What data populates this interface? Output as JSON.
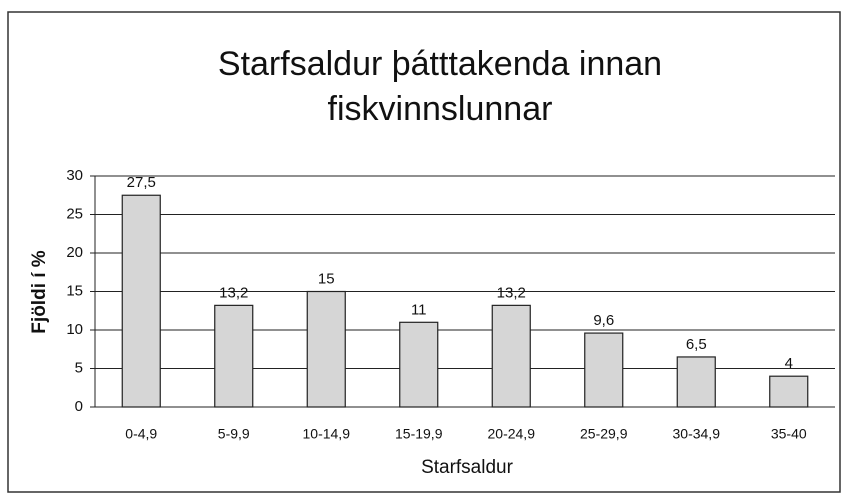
{
  "chart_data": {
    "type": "bar",
    "title": [
      "Starfsaldur þátttakenda innan",
      "fiskvinnslunnar"
    ],
    "x_label": "Starfsaldur",
    "y_label": "Fjöldi í %",
    "categories": [
      "0-4,9",
      "5-9,9",
      "10-14,9",
      "15-19,9",
      "20-24,9",
      "25-29,9",
      "30-34,9",
      "35-40"
    ],
    "values": [
      27.5,
      13.2,
      15,
      11,
      13.2,
      9.6,
      6.5,
      4
    ],
    "value_labels": [
      "27,5",
      "13,2",
      "15",
      "11",
      "13,2",
      "9,6",
      "6,5",
      "4"
    ],
    "color": "#d6d6d6",
    "ylim": [
      0,
      30
    ],
    "yticks": [
      0,
      5,
      10,
      15,
      20,
      25,
      30
    ],
    "grid": true
  }
}
